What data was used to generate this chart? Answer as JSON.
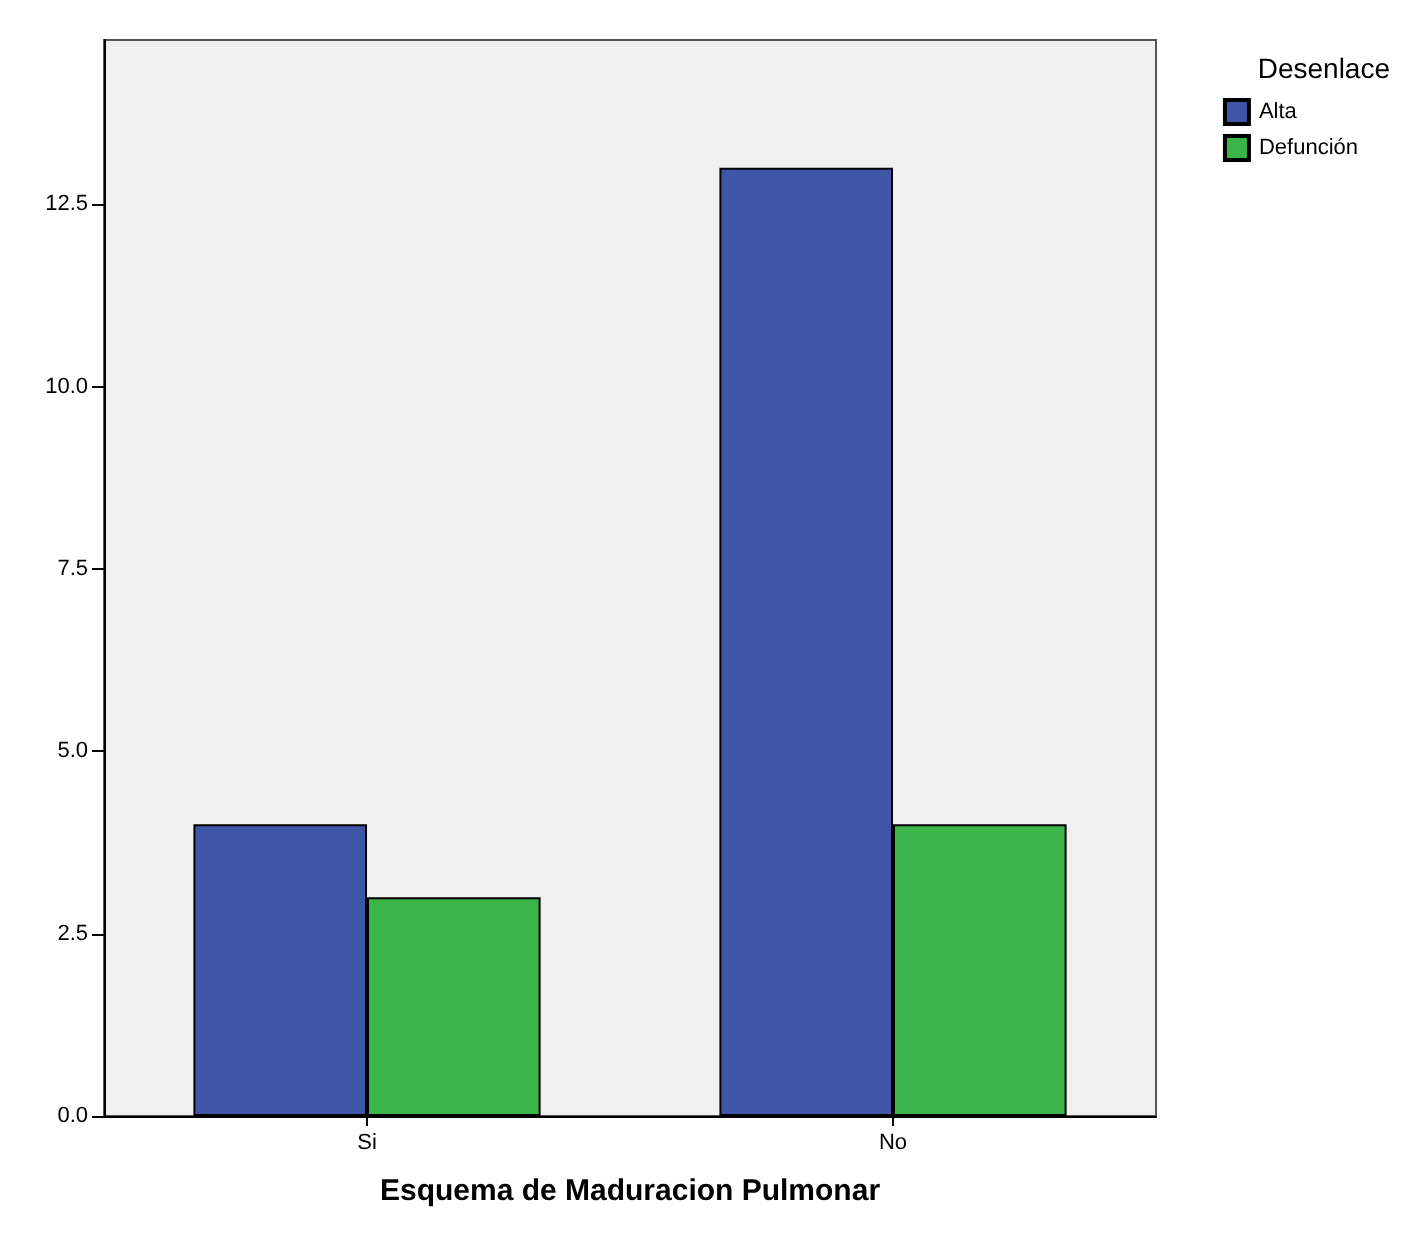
{
  "chart_data": {
    "type": "bar",
    "xlabel": "Esquema de Maduracion Pulmonar",
    "legend_title": "Desenlace",
    "categories": [
      "Si",
      "No"
    ],
    "series": [
      {
        "name": "Alta",
        "color": "#3f55a8",
        "values": [
          4,
          13
        ]
      },
      {
        "name": "Defunción",
        "color": "#3bb54a",
        "values": [
          3,
          4
        ]
      }
    ],
    "ylim": [
      0,
      14.75
    ],
    "yticks": [
      {
        "value": 0,
        "label": "0.0"
      },
      {
        "value": 2.5,
        "label": "2.5"
      },
      {
        "value": 5,
        "label": "5.0"
      },
      {
        "value": 7.5,
        "label": "7.5"
      },
      {
        "value": 10,
        "label": "10.0"
      },
      {
        "value": 12.5,
        "label": "12.5"
      }
    ],
    "grid": false,
    "legend": "top right"
  }
}
